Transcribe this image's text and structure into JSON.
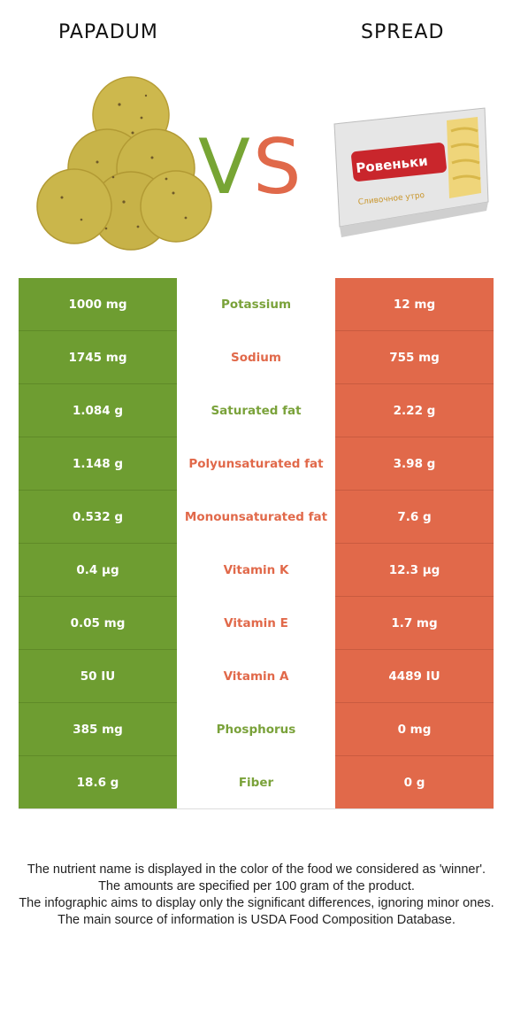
{
  "header": {
    "left_food": "PAPADUM",
    "right_food": "SPREAD",
    "vs_v": "V",
    "vs_s": "S"
  },
  "colors": {
    "left": "#6e9d31",
    "right": "#e1694a",
    "vs_v": "#77a534",
    "vs_s": "#e0694a"
  },
  "images": {
    "left": "papadum-image",
    "right": "spread-package-image"
  },
  "spread_package": {
    "brand": "Ровеньки",
    "subtitle": "Сливочное утро"
  },
  "nutrients": [
    {
      "name": "Potassium",
      "left": "1000 mg",
      "right": "12 mg",
      "winner": "left"
    },
    {
      "name": "Sodium",
      "left": "1745 mg",
      "right": "755 mg",
      "winner": "right"
    },
    {
      "name": "Saturated fat",
      "left": "1.084 g",
      "right": "2.22 g",
      "winner": "left"
    },
    {
      "name": "Polyunsaturated fat",
      "left": "1.148 g",
      "right": "3.98 g",
      "winner": "right"
    },
    {
      "name": "Monounsaturated fat",
      "left": "0.532 g",
      "right": "7.6 g",
      "winner": "right"
    },
    {
      "name": "Vitamin K",
      "left": "0.4 µg",
      "right": "12.3 µg",
      "winner": "right"
    },
    {
      "name": "Vitamin E",
      "left": "0.05 mg",
      "right": "1.7 mg",
      "winner": "right"
    },
    {
      "name": "Vitamin A",
      "left": "50 IU",
      "right": "4489 IU",
      "winner": "right"
    },
    {
      "name": "Phosphorus",
      "left": "385 mg",
      "right": "0 mg",
      "winner": "left"
    },
    {
      "name": "Fiber",
      "left": "18.6 g",
      "right": "0 g",
      "winner": "left"
    }
  ],
  "footer": {
    "line1": "The nutrient name is displayed in the color of the food we considered as 'winner'.",
    "line2": "The amounts are specified per 100 gram of the product.",
    "line3": "The infographic aims to display only the significant differences, ignoring minor ones.",
    "line4": "The main source of information is USDA Food Composition Database."
  }
}
